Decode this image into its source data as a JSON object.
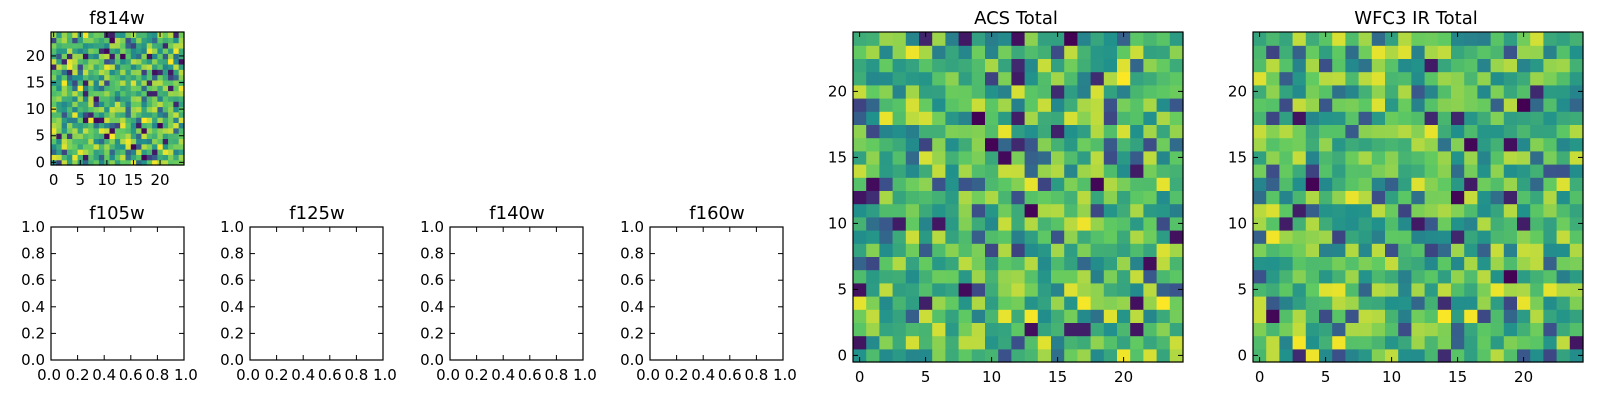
{
  "figure": {
    "background": "#ffffff",
    "colormap": "viridis",
    "cmap_stops": [
      "#440154",
      "#3b528b",
      "#21918c",
      "#5ec962",
      "#fde725"
    ]
  },
  "chart_data": [
    {
      "id": "f814w",
      "type": "heatmap",
      "title": "f814w",
      "grid_size": [
        25,
        25
      ],
      "seed": 814,
      "value_range": [
        0,
        1
      ],
      "origin": "lower",
      "xlim": [
        -0.5,
        24.5
      ],
      "ylim": [
        -0.5,
        24.5
      ],
      "xticks": [
        0,
        5,
        10,
        15,
        20
      ],
      "yticks": [
        0,
        5,
        10,
        15,
        20
      ],
      "xticklabels": [
        "0",
        "5",
        "10",
        "15",
        "20"
      ],
      "yticklabels": [
        "0",
        "5",
        "10",
        "15",
        "20"
      ],
      "xlabel": "",
      "ylabel": "",
      "grid": false
    },
    {
      "id": "f105w",
      "type": "heatmap",
      "title": "f105w",
      "empty": true,
      "xlim": [
        0,
        1
      ],
      "ylim": [
        0,
        1
      ],
      "xticks": [
        0.0,
        0.2,
        0.4,
        0.6,
        0.8,
        1.0
      ],
      "yticks": [
        0.0,
        0.2,
        0.4,
        0.6,
        0.8,
        1.0
      ],
      "xticklabels": [
        "0.0",
        "0.2",
        "0.4",
        "0.6",
        "0.8",
        "1.0"
      ],
      "yticklabels": [
        "0.0",
        "0.2",
        "0.4",
        "0.6",
        "0.8",
        "1.0"
      ],
      "xlabel": "",
      "ylabel": "",
      "grid": false
    },
    {
      "id": "f125w",
      "type": "heatmap",
      "title": "f125w",
      "empty": true,
      "xlim": [
        0,
        1
      ],
      "ylim": [
        0,
        1
      ],
      "xticks": [
        0.0,
        0.2,
        0.4,
        0.6,
        0.8,
        1.0
      ],
      "yticks": [
        0.0,
        0.2,
        0.4,
        0.6,
        0.8,
        1.0
      ],
      "xticklabels": [
        "0.0",
        "0.2",
        "0.4",
        "0.6",
        "0.8",
        "1.0"
      ],
      "yticklabels": [
        "0.0",
        "0.2",
        "0.4",
        "0.6",
        "0.8",
        "1.0"
      ],
      "xlabel": "",
      "ylabel": "",
      "grid": false
    },
    {
      "id": "f140w",
      "type": "heatmap",
      "title": "f140w",
      "empty": true,
      "xlim": [
        0,
        1
      ],
      "ylim": [
        0,
        1
      ],
      "xticks": [
        0.0,
        0.2,
        0.4,
        0.6,
        0.8,
        1.0
      ],
      "yticks": [
        0.0,
        0.2,
        0.4,
        0.6,
        0.8,
        1.0
      ],
      "xticklabels": [
        "0.0",
        "0.2",
        "0.4",
        "0.6",
        "0.8",
        "1.0"
      ],
      "yticklabels": [
        "0.0",
        "0.2",
        "0.4",
        "0.6",
        "0.8",
        "1.0"
      ],
      "xlabel": "",
      "ylabel": "",
      "grid": false
    },
    {
      "id": "f160w",
      "type": "heatmap",
      "title": "f160w",
      "empty": true,
      "xlim": [
        0,
        1
      ],
      "ylim": [
        0,
        1
      ],
      "xticks": [
        0.0,
        0.2,
        0.4,
        0.6,
        0.8,
        1.0
      ],
      "yticks": [
        0.0,
        0.2,
        0.4,
        0.6,
        0.8,
        1.0
      ],
      "xticklabels": [
        "0.0",
        "0.2",
        "0.4",
        "0.6",
        "0.8",
        "1.0"
      ],
      "yticklabels": [
        "0.0",
        "0.2",
        "0.4",
        "0.6",
        "0.8",
        "1.0"
      ],
      "xlabel": "",
      "ylabel": "",
      "grid": false
    },
    {
      "id": "acs-total",
      "type": "heatmap",
      "title": "ACS Total",
      "grid_size": [
        25,
        25
      ],
      "seed": 2001,
      "value_range": [
        0,
        1
      ],
      "origin": "lower",
      "xlim": [
        -0.5,
        24.5
      ],
      "ylim": [
        -0.5,
        24.5
      ],
      "xticks": [
        0,
        5,
        10,
        15,
        20
      ],
      "yticks": [
        0,
        5,
        10,
        15,
        20
      ],
      "xticklabels": [
        "0",
        "5",
        "10",
        "15",
        "20"
      ],
      "yticklabels": [
        "0",
        "5",
        "10",
        "15",
        "20"
      ],
      "xlabel": "",
      "ylabel": "",
      "grid": false
    },
    {
      "id": "wfc3-ir-total",
      "type": "heatmap",
      "title": "WFC3 IR Total",
      "grid_size": [
        25,
        25
      ],
      "seed": 3003,
      "value_range": [
        0,
        1
      ],
      "origin": "lower",
      "xlim": [
        -0.5,
        24.5
      ],
      "ylim": [
        -0.5,
        24.5
      ],
      "xticks": [
        0,
        5,
        10,
        15,
        20
      ],
      "yticks": [
        0,
        5,
        10,
        15,
        20
      ],
      "xticklabels": [
        "0",
        "5",
        "10",
        "15",
        "20"
      ],
      "yticklabels": [
        "0",
        "5",
        "10",
        "15",
        "20"
      ],
      "xlabel": "",
      "ylabel": "",
      "grid": false
    }
  ]
}
